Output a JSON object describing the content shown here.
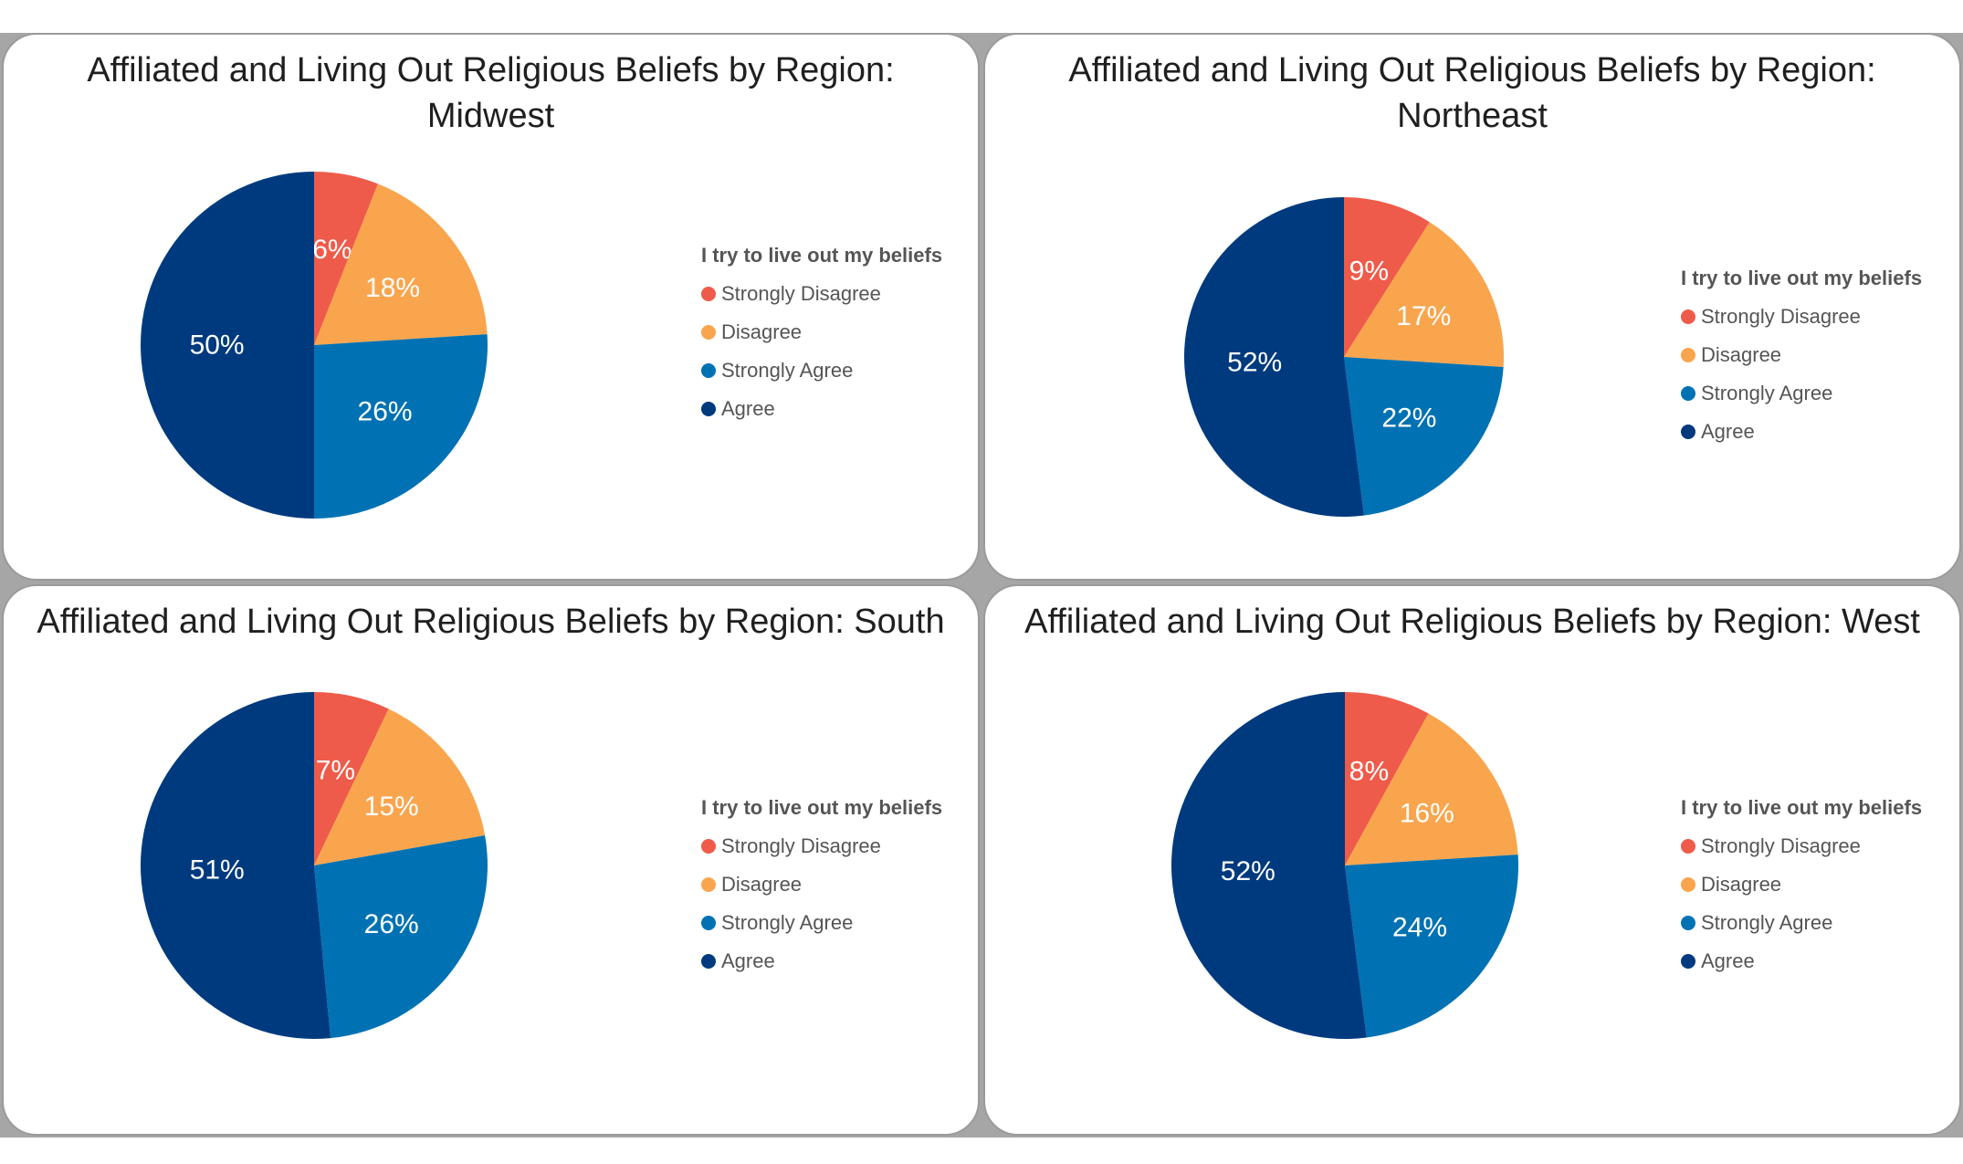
{
  "colors": {
    "strongly_disagree": "#ef5b4a",
    "disagree": "#f9a54e",
    "strongly_agree": "#0072b3",
    "agree": "#003a7e"
  },
  "chart_data": [
    {
      "type": "pie",
      "title": "Affiliated and Living Out Religious Beliefs by Region: Midwest",
      "legend_title": "I try to live out my beliefs",
      "legend_position": "right",
      "categories": [
        "Strongly Disagree",
        "Disagree",
        "Strongly Agree",
        "Agree"
      ],
      "values": [
        6,
        18,
        26,
        50
      ],
      "labels": [
        "6%",
        "18%",
        "26%",
        "50%"
      ]
    },
    {
      "type": "pie",
      "title": "Affiliated and Living Out Religious Beliefs by Region: Northeast",
      "legend_title": "I try to live out my beliefs",
      "legend_position": "right",
      "categories": [
        "Strongly Disagree",
        "Disagree",
        "Strongly Agree",
        "Agree"
      ],
      "values": [
        9,
        17,
        22,
        52
      ],
      "labels": [
        "9%",
        "17%",
        "22%",
        "52%"
      ]
    },
    {
      "type": "pie",
      "title": "Affiliated and Living Out Religious Beliefs by Region: South",
      "legend_title": "I try to live out my beliefs",
      "legend_position": "right",
      "categories": [
        "Strongly Disagree",
        "Disagree",
        "Strongly Agree",
        "Agree"
      ],
      "values": [
        7,
        15,
        26,
        51
      ],
      "labels": [
        "7%",
        "15%",
        "26%",
        "51%"
      ]
    },
    {
      "type": "pie",
      "title": "Affiliated and Living Out Religious Beliefs by Region: West",
      "legend_title": "I try to live out my beliefs",
      "legend_position": "right",
      "categories": [
        "Strongly Disagree",
        "Disagree",
        "Strongly Agree",
        "Agree"
      ],
      "values": [
        8,
        16,
        24,
        52
      ],
      "labels": [
        "8%",
        "16%",
        "24%",
        "52%"
      ]
    }
  ]
}
